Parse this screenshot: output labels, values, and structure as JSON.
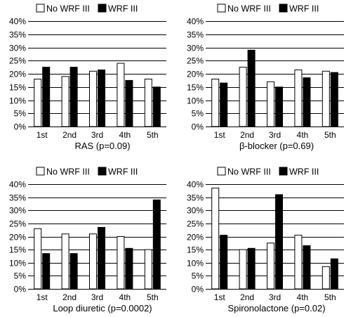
{
  "colors": {
    "no_wrf": "#ffffff",
    "wrf": "#000000",
    "grid": "#000000"
  },
  "legend": {
    "no_wrf_label": "No WRF III",
    "wrf_label": "WRF III"
  },
  "chart_data": [
    {
      "type": "bar",
      "title": "RAS (p=0.09)",
      "categories": [
        "1st",
        "2nd",
        "3rd",
        "4th",
        "5th"
      ],
      "y_ticks": [
        "0%",
        "5%",
        "10%",
        "15%",
        "20%",
        "25%",
        "30%",
        "35%",
        "40%"
      ],
      "ylim": [
        0,
        40
      ],
      "grid": true,
      "legend_position": "top",
      "series": [
        {
          "name": "No WRF III",
          "values": [
            18,
            19,
            21,
            24,
            18
          ]
        },
        {
          "name": "WRF III",
          "values": [
            22.5,
            22.5,
            21.5,
            17.5,
            15
          ]
        }
      ]
    },
    {
      "type": "bar",
      "title": "β-blocker (p=0.69)",
      "categories": [
        "1st",
        "2nd",
        "3rd",
        "4th",
        "5th"
      ],
      "y_ticks": [
        "0%",
        "5%",
        "10%",
        "15%",
        "20%",
        "25%",
        "30%",
        "35%",
        "40%"
      ],
      "ylim": [
        0,
        40
      ],
      "grid": true,
      "legend_position": "top",
      "series": [
        {
          "name": "No WRF III",
          "values": [
            18,
            22.5,
            17,
            21.5,
            21
          ]
        },
        {
          "name": "WRF III",
          "values": [
            16.5,
            29,
            15,
            18.5,
            20.5
          ]
        }
      ]
    },
    {
      "type": "bar",
      "title": "Loop diuretic (p=0.0002)",
      "categories": [
        "1st",
        "2nd",
        "3rd",
        "4th",
        "5th"
      ],
      "y_ticks": [
        "0%",
        "5%",
        "10%",
        "15%",
        "20%",
        "25%",
        "30%",
        "35%",
        "40%"
      ],
      "ylim": [
        0,
        40
      ],
      "grid": true,
      "legend_position": "top",
      "series": [
        {
          "name": "No WRF III",
          "values": [
            23,
            21,
            21,
            20,
            15
          ]
        },
        {
          "name": "WRF III",
          "values": [
            13.5,
            13.5,
            23.5,
            15.5,
            34
          ]
        }
      ]
    },
    {
      "type": "bar",
      "title": "Spironolactone (p=0.02)",
      "categories": [
        "1st",
        "2nd",
        "3rd",
        "4th",
        "5th"
      ],
      "y_ticks": [
        "0%",
        "5%",
        "10%",
        "15%",
        "20%",
        "25%",
        "30%",
        "35%",
        "40%"
      ],
      "ylim": [
        0,
        40
      ],
      "grid": true,
      "legend_position": "top",
      "series": [
        {
          "name": "No WRF III",
          "values": [
            38.5,
            15,
            17.5,
            20.5,
            8.5
          ]
        },
        {
          "name": "WRF III",
          "values": [
            20.5,
            15.5,
            36,
            16.5,
            11.5
          ]
        }
      ]
    }
  ]
}
